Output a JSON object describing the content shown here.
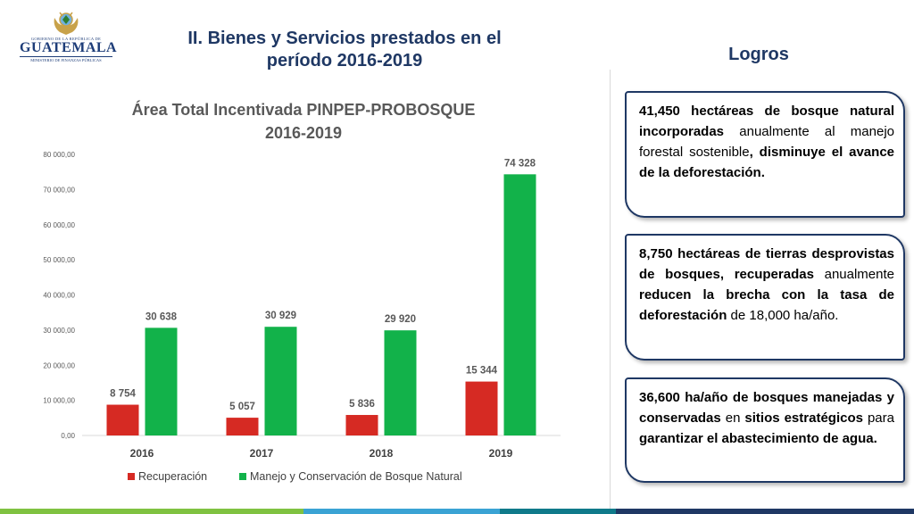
{
  "logo": {
    "gob": "GOBIERNO DE LA REPÚBLICA DE",
    "name": "GUATEMALA",
    "ministry": "MINISTERIO DE FINANZAS PÚBLICAS"
  },
  "header": {
    "title_line1": "II. Bienes y Servicios prestados en el",
    "title_line2": "período 2016-2019",
    "logros": "Logros"
  },
  "chart_data": {
    "type": "bar",
    "title": "Área Total Incentivada PINPEP-PROBOSQUE",
    "subtitle": "2016-2019",
    "categories": [
      "2016",
      "2017",
      "2018",
      "2019"
    ],
    "series": [
      {
        "name": "Recuperación",
        "color": "#d62a23",
        "values": [
          8754,
          5057,
          5836,
          15344
        ],
        "labels": [
          "8 754",
          "5 057",
          "5 836",
          "15 344"
        ]
      },
      {
        "name": "Manejo y Conservación de Bosque Natural",
        "color": "#12b24a",
        "values": [
          30638,
          30929,
          29920,
          74328
        ],
        "labels": [
          "30 638",
          "30 929",
          "29 920",
          "74 328"
        ]
      }
    ],
    "yticks": [
      "0,00",
      "10 000,00",
      "20 000,00",
      "30 000,00",
      "40 000,00",
      "50 000,00",
      "60 000,00",
      "70 000,00",
      "80 000,00"
    ],
    "ylim": [
      0,
      80000
    ],
    "grid": false,
    "legend": "bottom"
  },
  "cards": [
    {
      "parts": [
        {
          "t": "41,450 hectáreas de bosque natural incorporadas",
          "b": true
        },
        {
          "t": " anualmente al manejo forestal sostenible",
          "b": false
        },
        {
          "t": ", disminuye el avance de la deforestación.",
          "b": true
        }
      ]
    },
    {
      "parts": [
        {
          "t": "8,750 hectáreas de tierras desprovistas de bosques, recuperadas",
          "b": true
        },
        {
          "t": " anualmente ",
          "b": false
        },
        {
          "t": "reducen la brecha con la tasa de deforestación",
          "b": true
        },
        {
          "t": " de 18,000 ha/año.",
          "b": false
        }
      ]
    },
    {
      "parts": [
        {
          "t": "36,600 ha/año de bosques manejadas y conservadas",
          "b": true
        },
        {
          "t": " en ",
          "b": false
        },
        {
          "t": "sitios estratégicos",
          "b": true
        },
        {
          "t": " para ",
          "b": false
        },
        {
          "t": "garantizar el abastecimiento de agua.",
          "b": true
        }
      ]
    }
  ],
  "footer_colors": [
    "#7fc241",
    "#3aa3d4",
    "#0f7a8a",
    "#1f3864"
  ]
}
